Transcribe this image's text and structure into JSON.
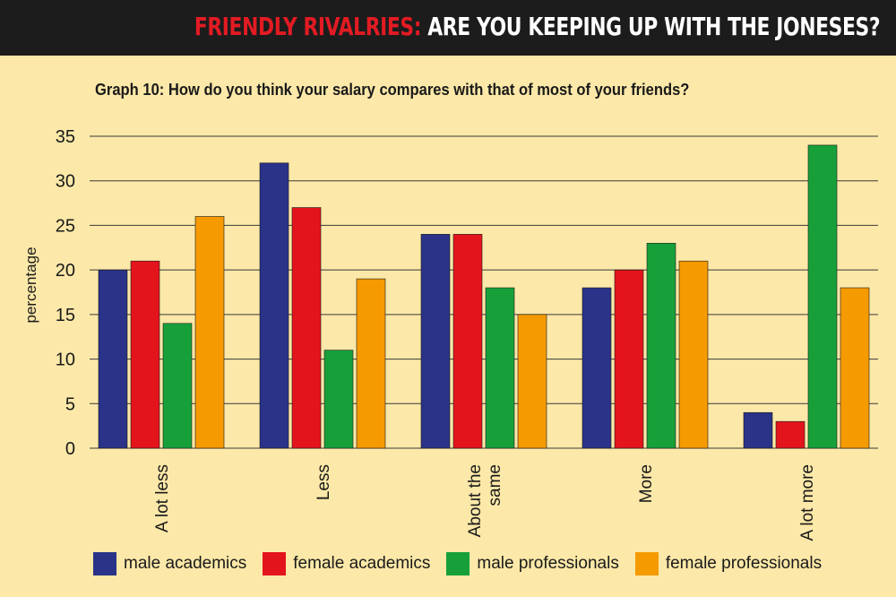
{
  "banner": {
    "red_part": "FRIENDLY RIVALRIES:",
    "white_part": "ARE YOU KEEPING UP WITH THE JONESES?"
  },
  "colors": {
    "background": "#fce8a8",
    "banner": "#1c1c1c",
    "banner_accent": "#e21b23"
  },
  "chart_data": {
    "type": "bar",
    "title": "Graph 10: How do you think your salary compares with that of most of your friends?",
    "ylabel": "percentage",
    "xlabel": "",
    "ylim": [
      0,
      35
    ],
    "yticks": [
      0,
      5,
      10,
      15,
      20,
      25,
      30,
      35
    ],
    "grid": "horizontal",
    "legend_position": "bottom",
    "categories": [
      "A lot less",
      "Less",
      "About the same",
      "More",
      "A lot more"
    ],
    "series": [
      {
        "name": "male academics",
        "color": "#2a3388",
        "values": [
          20,
          32,
          24,
          18,
          4
        ]
      },
      {
        "name": "female academics",
        "color": "#e3141c",
        "values": [
          21,
          27,
          24,
          20,
          3
        ]
      },
      {
        "name": "male professionals",
        "color": "#17a03a",
        "values": [
          14,
          11,
          18,
          23,
          34
        ]
      },
      {
        "name": "female professionals",
        "color": "#f59a00",
        "values": [
          26,
          19,
          15,
          21,
          18
        ]
      }
    ]
  }
}
